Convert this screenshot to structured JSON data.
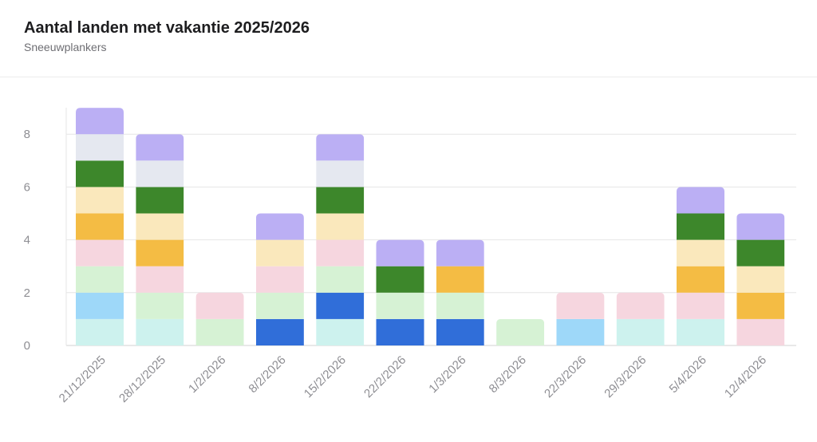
{
  "header": {
    "title": "Aantal landen met vakantie 2025/2026",
    "subtitle": "Sneeuwplankers"
  },
  "chart_data": {
    "type": "bar",
    "stacked": true,
    "title": "Aantal landen met vakantie 2025/2026",
    "subtitle": "Sneeuwplankers",
    "xlabel": "",
    "ylabel": "",
    "ylim": [
      0,
      9
    ],
    "yticks": [
      0,
      2,
      4,
      6,
      8
    ],
    "grid": true,
    "legend": "none",
    "categories": [
      "21/12/2025",
      "28/12/2025",
      "1/2/2026",
      "8/2/2026",
      "15/2/2026",
      "22/2/2026",
      "1/3/2026",
      "8/3/2026",
      "22/3/2026",
      "29/3/2026",
      "5/4/2026",
      "12/4/2026"
    ],
    "series": [
      {
        "color": "#cdf2ee",
        "values": [
          1,
          1,
          0,
          0,
          1,
          0,
          0,
          0,
          0,
          1,
          1,
          0
        ]
      },
      {
        "color": "#9ed8f9",
        "values": [
          1,
          0,
          0,
          0,
          0,
          0,
          0,
          0,
          1,
          0,
          0,
          0
        ]
      },
      {
        "color": "#306ed9",
        "values": [
          0,
          0,
          0,
          1,
          1,
          1,
          1,
          0,
          0,
          0,
          0,
          0
        ]
      },
      {
        "color": "#d6f2d4",
        "values": [
          1,
          1,
          1,
          1,
          1,
          1,
          1,
          1,
          0,
          0,
          0,
          0
        ]
      },
      {
        "color": "#f6d6df",
        "values": [
          1,
          1,
          1,
          1,
          1,
          0,
          0,
          0,
          1,
          1,
          1,
          1
        ]
      },
      {
        "color": "#f4bc44",
        "values": [
          1,
          1,
          0,
          0,
          0,
          0,
          1,
          0,
          0,
          0,
          1,
          1
        ]
      },
      {
        "color": "#fae8bc",
        "values": [
          1,
          1,
          0,
          1,
          1,
          0,
          0,
          0,
          0,
          0,
          1,
          1
        ]
      },
      {
        "color": "#3d872b",
        "values": [
          1,
          1,
          0,
          0,
          1,
          1,
          0,
          0,
          0,
          0,
          1,
          1
        ]
      },
      {
        "color": "#e5e8f0",
        "values": [
          1,
          1,
          0,
          0,
          1,
          0,
          0,
          0,
          0,
          0,
          0,
          0
        ]
      },
      {
        "color": "#bbaff4",
        "values": [
          1,
          1,
          0,
          1,
          1,
          1,
          1,
          0,
          0,
          0,
          1,
          1
        ]
      }
    ]
  }
}
